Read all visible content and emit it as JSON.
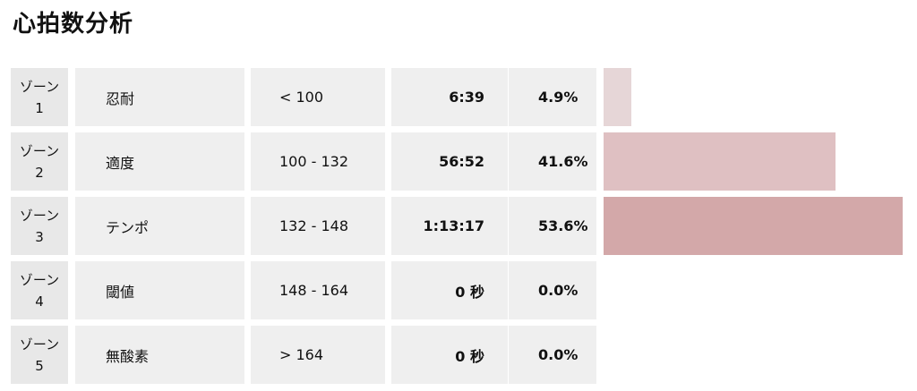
{
  "page": {
    "title": "心拍数分析"
  },
  "zones": [
    {
      "label_line1": "ゾーン",
      "label_line2": "1",
      "name": "忍耐",
      "range": "< 100",
      "time": "6:39",
      "percent": "4.9%",
      "fraction": 0.049,
      "color": "#e6d6d7"
    },
    {
      "label_line1": "ゾーン",
      "label_line2": "2",
      "name": "適度",
      "range": "100 - 132",
      "time": "56:52",
      "percent": "41.6%",
      "fraction": 0.416,
      "color": "#dfc0c2"
    },
    {
      "label_line1": "ゾーン",
      "label_line2": "3",
      "name": "テンポ",
      "range": "132 - 148",
      "time": "1:13:17",
      "percent": "53.6%",
      "fraction": 0.536,
      "color": "#d3a8a9"
    },
    {
      "label_line1": "ゾーン",
      "label_line2": "4",
      "name": "閾値",
      "range": "148 - 164",
      "time": "0 秒",
      "percent": "0.0%",
      "fraction": 0.0,
      "color": "#d3a8a9"
    },
    {
      "label_line1": "ゾーン",
      "label_line2": "5",
      "name": "無酸素",
      "range": "> 164",
      "time": "0 秒",
      "percent": "0.0%",
      "fraction": 0.0,
      "color": "#d3a8a9"
    }
  ]
}
